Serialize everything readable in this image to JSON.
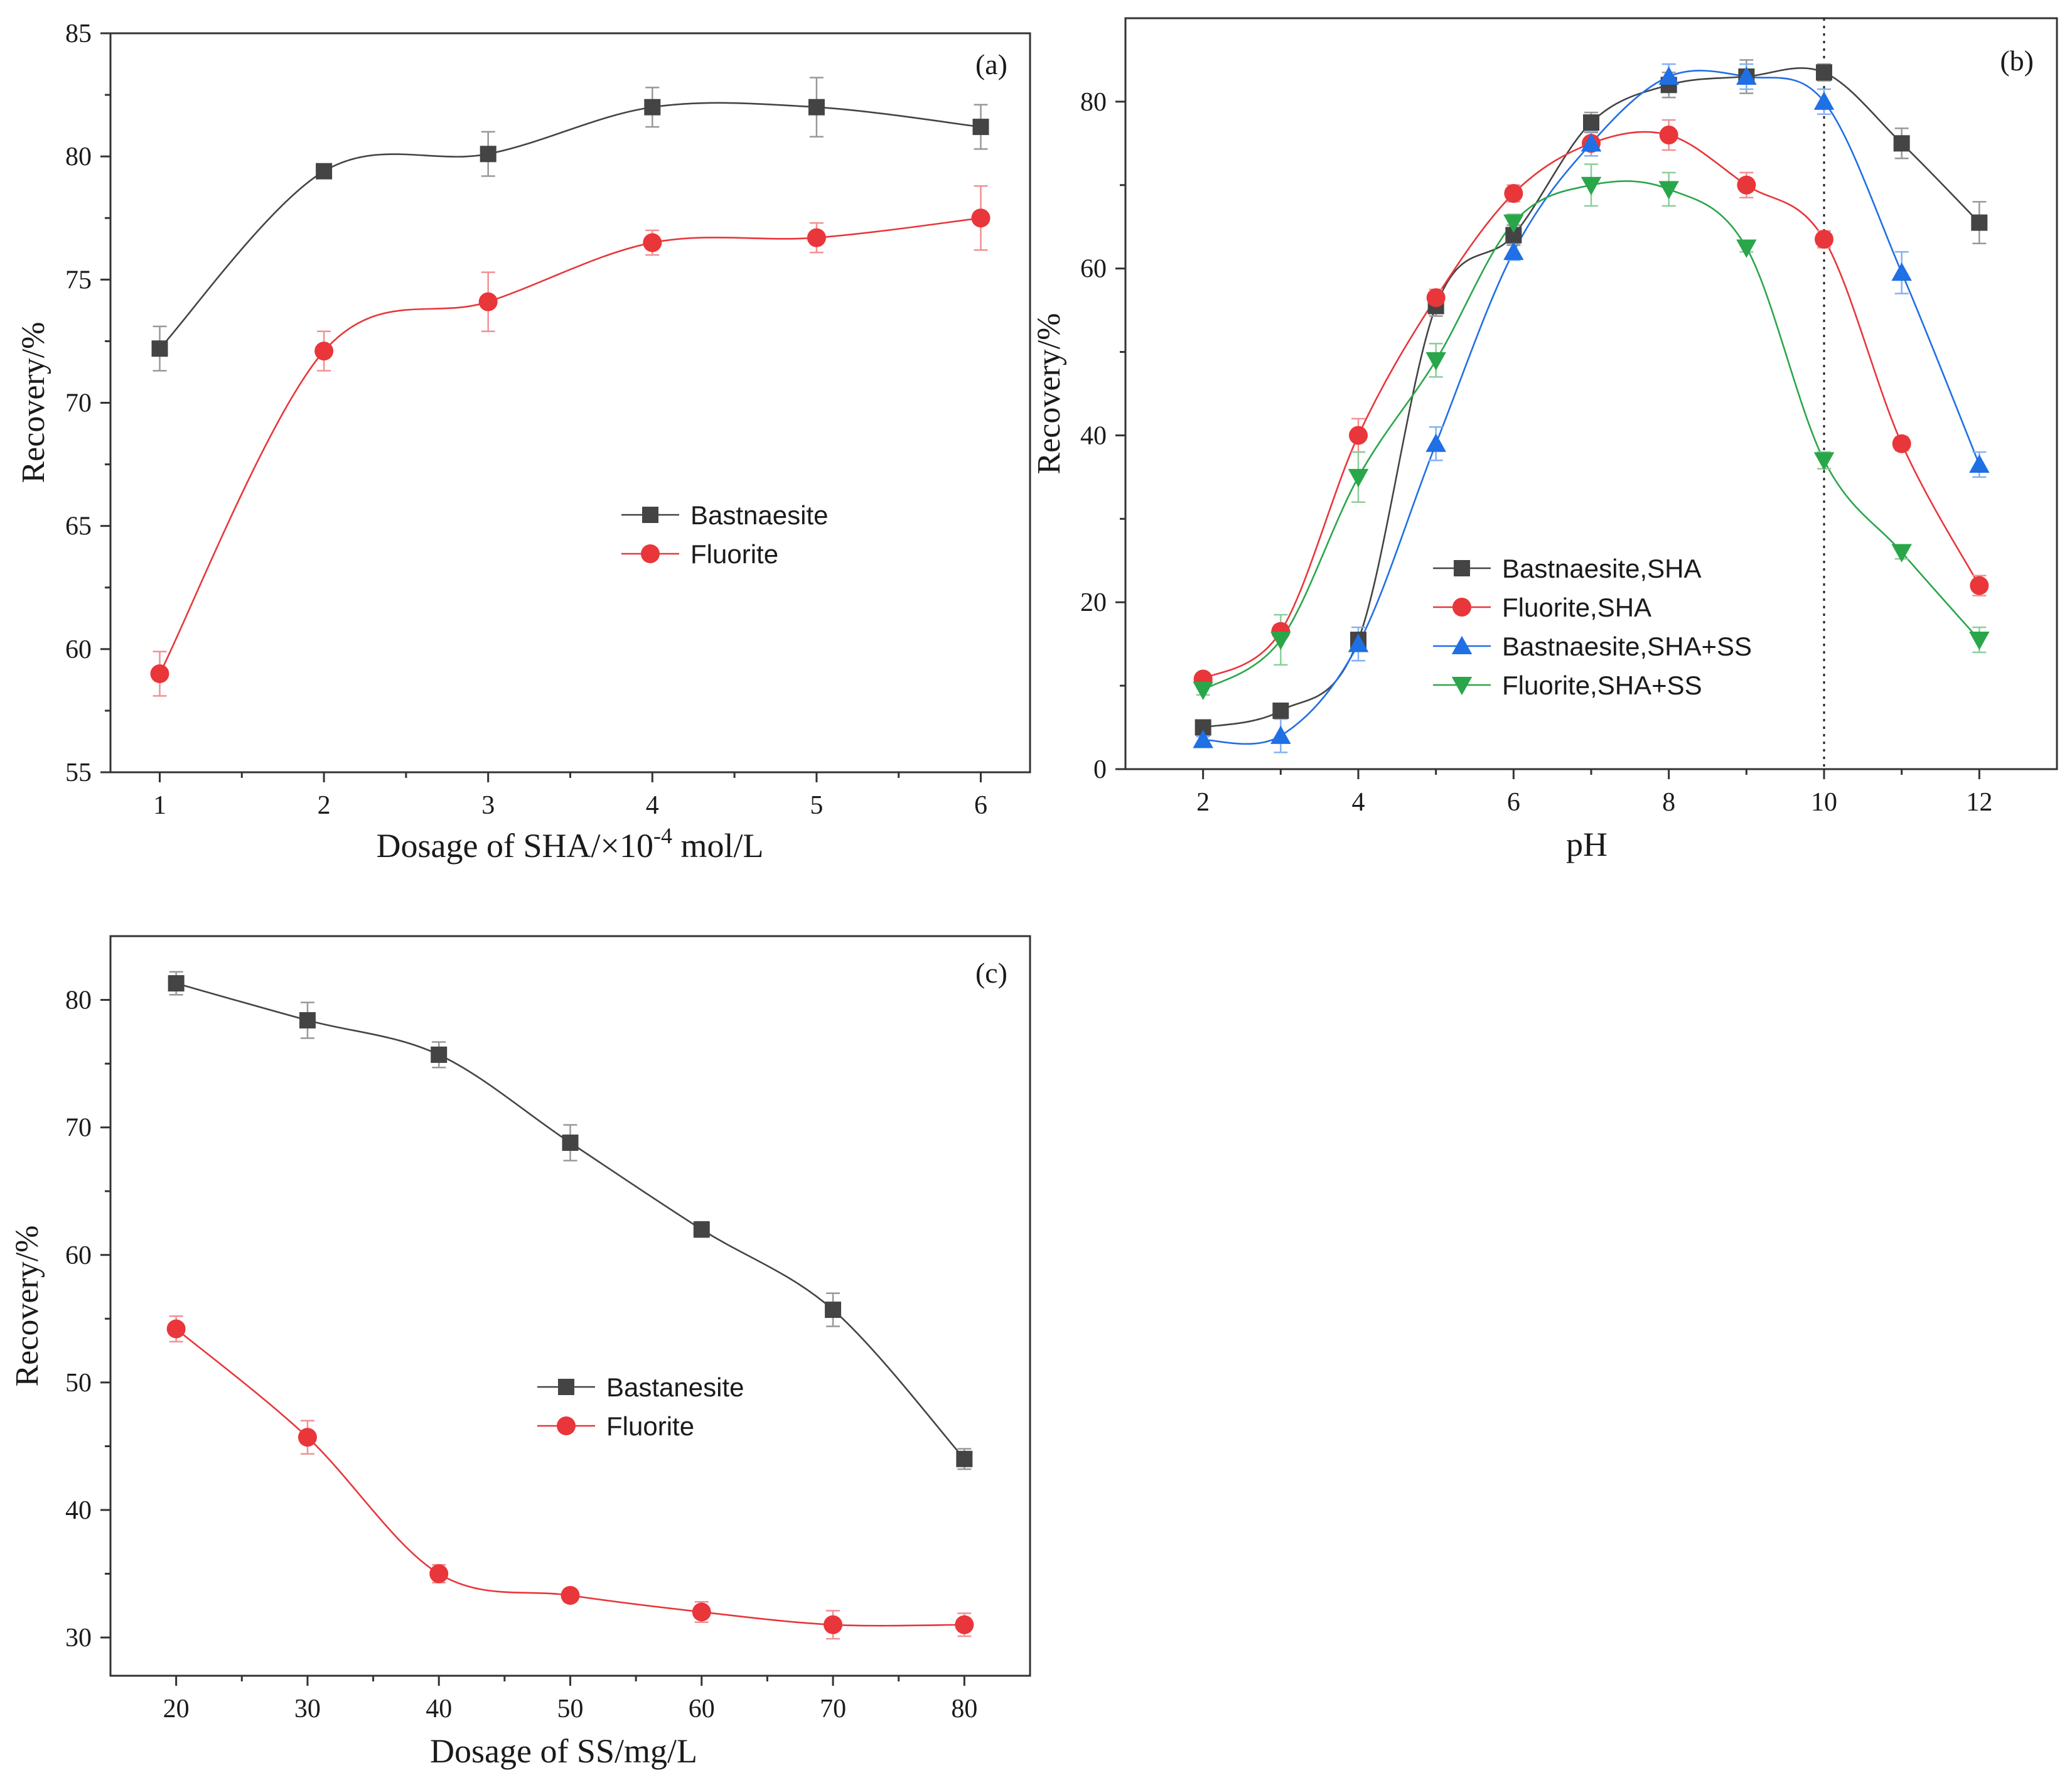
{
  "chart_data": [
    {
      "id": "a",
      "type": "line",
      "panel_label": "(a)",
      "xlabel": "Dosage of SHA/×10⁻⁴ mol/L",
      "xlabel_main": "Dosage of SHA/×10",
      "xlabel_sup": "-4",
      "xlabel_unit": " mol/L",
      "ylabel": "Recovery/%",
      "xlim": [
        0.7,
        6.3
      ],
      "ylim": [
        55,
        85
      ],
      "xticks": [
        1,
        2,
        3,
        4,
        5,
        6
      ],
      "yticks": [
        55,
        60,
        65,
        70,
        75,
        80,
        85
      ],
      "legend_position": "center-right",
      "series": [
        {
          "name": "Bastnaesite",
          "color": "#444444",
          "marker": "square",
          "x": [
            1,
            2,
            3,
            4,
            5,
            6
          ],
          "y": [
            72.2,
            79.4,
            80.1,
            82.0,
            82.0,
            81.2
          ],
          "err": [
            0.9,
            0,
            0.9,
            0.8,
            1.2,
            0.9
          ]
        },
        {
          "name": "Fluorite",
          "color": "#e8363a",
          "marker": "circle",
          "x": [
            1,
            2,
            3,
            4,
            5,
            6
          ],
          "y": [
            59.0,
            72.1,
            74.1,
            76.5,
            76.7,
            77.5
          ],
          "err": [
            0.9,
            0.8,
            1.2,
            0.5,
            0.6,
            1.3
          ]
        }
      ]
    },
    {
      "id": "b",
      "type": "line",
      "panel_label": "(b)",
      "xlabel": "pH",
      "ylabel": "Recovery/%",
      "xlim": [
        1,
        13
      ],
      "ylim": [
        0,
        90
      ],
      "xticks": [
        2,
        4,
        6,
        8,
        10,
        12
      ],
      "yticks": [
        0,
        20,
        40,
        60,
        80
      ],
      "reference_line_x": 10,
      "legend_position": "lower-left",
      "series": [
        {
          "name": "Bastnaesite,SHA",
          "color": "#444444",
          "marker": "square",
          "x": [
            2,
            3,
            4,
            5,
            6,
            7,
            8,
            9,
            10,
            11,
            12
          ],
          "y": [
            5.0,
            7.0,
            15.5,
            55.5,
            64.0,
            77.5,
            82.0,
            83.0,
            83.5,
            75.0,
            65.5
          ],
          "err": [
            0.6,
            0.6,
            0.8,
            1.2,
            1.2,
            1.2,
            1.5,
            2.0,
            1.0,
            1.8,
            2.5
          ]
        },
        {
          "name": "Fluorite,SHA",
          "color": "#e8363a",
          "marker": "circle",
          "x": [
            2,
            3,
            4,
            5,
            6,
            7,
            8,
            9,
            10,
            11,
            12
          ],
          "y": [
            10.8,
            16.5,
            40.0,
            56.5,
            69.0,
            75.0,
            76.0,
            70.0,
            63.5,
            39.0,
            22.0
          ],
          "err": [
            0.6,
            0.8,
            2.0,
            1.0,
            1.0,
            1.5,
            1.8,
            1.5,
            1.0,
            0.8,
            1.2
          ]
        },
        {
          "name": "Bastnaesite,SHA+SS",
          "color": "#1f6fe5",
          "marker": "triangle-up",
          "x": [
            2,
            3,
            4,
            5,
            6,
            7,
            8,
            9,
            10,
            11,
            12
          ],
          "y": [
            3.5,
            4.0,
            15.0,
            39.0,
            62.0,
            75.0,
            83.0,
            83.0,
            80.0,
            59.5,
            36.5
          ],
          "err": [
            0.4,
            2.0,
            2.0,
            2.0,
            1.0,
            1.5,
            1.5,
            1.5,
            1.5,
            2.5,
            1.5
          ]
        },
        {
          "name": "Fluorite,SHA+SS",
          "color": "#2aa64a",
          "marker": "triangle-down",
          "x": [
            2,
            3,
            4,
            5,
            6,
            7,
            8,
            9,
            10,
            11,
            12
          ],
          "y": [
            9.5,
            15.5,
            35.0,
            49.0,
            65.5,
            70.0,
            69.5,
            62.5,
            37.0,
            26.0,
            15.5
          ],
          "err": [
            0.6,
            3.0,
            3.0,
            2.0,
            1.0,
            2.5,
            2.0,
            0.5,
            1.0,
            0.8,
            1.5
          ]
        }
      ]
    },
    {
      "id": "c",
      "type": "line",
      "panel_label": "(c)",
      "xlabel": "Dosage of SS/mg/L",
      "ylabel": "Recovery/%",
      "xlim": [
        15,
        85
      ],
      "ylim": [
        27,
        85
      ],
      "xticks": [
        20,
        30,
        40,
        50,
        60,
        70,
        80
      ],
      "yticks": [
        30,
        40,
        50,
        60,
        70,
        80
      ],
      "legend_position": "center-right",
      "series": [
        {
          "name": "Bastanesite",
          "color": "#444444",
          "marker": "square",
          "x": [
            20,
            30,
            40,
            50,
            60,
            70,
            80
          ],
          "y": [
            81.3,
            78.4,
            75.7,
            68.8,
            62.0,
            55.7,
            44.0
          ],
          "err": [
            0.9,
            1.4,
            1.0,
            1.4,
            0.6,
            1.3,
            0.8
          ]
        },
        {
          "name": "Fluorite",
          "color": "#e8363a",
          "marker": "circle",
          "x": [
            20,
            30,
            40,
            50,
            60,
            70,
            80
          ],
          "y": [
            54.2,
            45.7,
            35.0,
            33.3,
            32.0,
            31.0,
            31.0
          ],
          "err": [
            1.0,
            1.3,
            0.7,
            0.5,
            0.8,
            1.1,
            0.9
          ]
        }
      ]
    }
  ]
}
